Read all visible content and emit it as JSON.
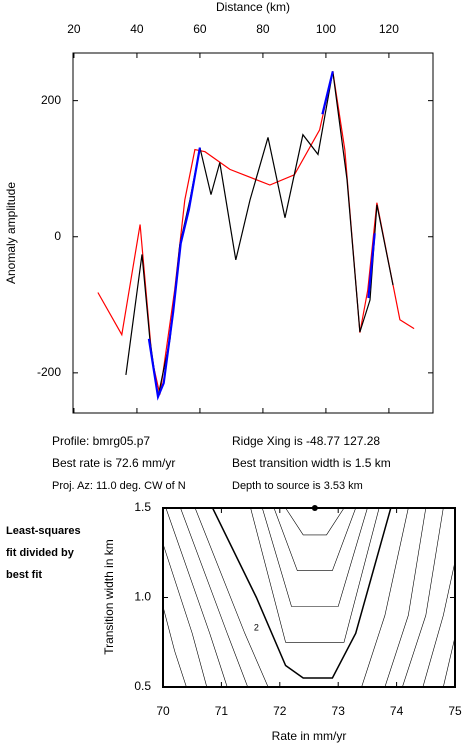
{
  "chart_data": [
    {
      "type": "line",
      "xlabel": "Distance (km)",
      "ylabel": "Anomaly amplitude",
      "xlim": [
        19.7,
        134
      ],
      "ylim": [
        -259,
        270
      ],
      "xticks": [
        20,
        40,
        60,
        80,
        100,
        120
      ],
      "yticks": [
        -200,
        0,
        200
      ],
      "series": [
        {
          "color": "#ff0000",
          "x": [
            27.6,
            35.2,
            41,
            44.8,
            47.3,
            52,
            55.2,
            58.4,
            61.6,
            69.5,
            82.2,
            90,
            98,
            102.2,
            106,
            110.8,
            113.3,
            116.2,
            119.4,
            123.5,
            128
          ],
          "values": [
            -82,
            -144,
            18,
            -181,
            -232,
            -78,
            54,
            128,
            125,
            99,
            76,
            91,
            157,
            243,
            128,
            -141,
            -78,
            50,
            -26,
            -122,
            -135
          ]
        },
        {
          "color": "#000000",
          "x": [
            36.5,
            41.6,
            44.1,
            46.7,
            50.5,
            53.6,
            56.8,
            60,
            63.5,
            66.3,
            71.4,
            75.9,
            81.6,
            87,
            92.7,
            97.5,
            102.2,
            106.7,
            110.8,
            114,
            116.2,
            121.3
          ],
          "values": [
            -203,
            -26,
            -151,
            -235,
            -151,
            -12,
            54,
            131,
            62,
            109,
            -34,
            54,
            146,
            28,
            150,
            121,
            243,
            84,
            -140,
            -93,
            47,
            -71
          ]
        },
        {
          "color": "#0000ff",
          "x": [
            43.8,
            46.7,
            48.5,
            51.5,
            53.9,
            56.5,
            60,
            null,
            98.9,
            102.2,
            null,
            113.5,
            115.5
          ],
          "values": [
            -150,
            -235,
            -215,
            -110,
            -10,
            40,
            131,
            null,
            180,
            243,
            null,
            -90,
            5
          ]
        }
      ]
    },
    {
      "type": "contour",
      "xlabel": "Rate in mm/yr",
      "ylabel": "Transition width in km",
      "xlim": [
        70,
        75
      ],
      "ylim": [
        0.5,
        1.5
      ],
      "xticks": [
        70,
        71,
        72,
        73,
        74,
        75
      ],
      "yticks": [
        {
          "value": 0.5,
          "label": "0.5"
        },
        {
          "value": 1.0,
          "label": "1.0"
        },
        {
          "value": 1.5,
          "label": "1.5"
        }
      ],
      "best_fit": {
        "x": 72.6,
        "y": 1.5
      },
      "contour_label": {
        "text": "2",
        "x": 71.6,
        "y": 0.83
      },
      "contours": [
        {
          "x": [
            72.1,
            72.4,
            72.8,
            73.1
          ],
          "y": [
            1.5,
            1.35,
            1.35,
            1.5
          ],
          "width": 0.6
        },
        {
          "x": [
            71.9,
            72.3,
            72.9,
            73.3
          ],
          "y": [
            1.5,
            1.15,
            1.15,
            1.5
          ],
          "width": 0.6
        },
        {
          "x": [
            71.7,
            72.2,
            73.0,
            73.5
          ],
          "y": [
            1.5,
            0.95,
            0.95,
            1.5
          ],
          "width": 0.6
        },
        {
          "x": [
            71.5,
            72.1,
            73.1,
            73.7
          ],
          "y": [
            1.5,
            0.75,
            0.75,
            1.5
          ],
          "width": 0.6
        },
        {
          "x": [
            70.85,
            71.6,
            72.1,
            72.4,
            72.9,
            73.3,
            73.9
          ],
          "y": [
            1.5,
            1.0,
            0.62,
            0.55,
            0.55,
            0.8,
            1.5
          ],
          "width": 1.5
        },
        {
          "x": [
            70.55,
            71.4,
            71.8
          ],
          "y": [
            1.5,
            0.8,
            0.5
          ],
          "width": 0.6
        },
        {
          "x": [
            73.4,
            73.8,
            74.2
          ],
          "y": [
            0.5,
            0.9,
            1.5
          ],
          "width": 0.6
        },
        {
          "x": [
            70.3,
            71.1,
            71.45
          ],
          "y": [
            1.5,
            0.8,
            0.5
          ],
          "width": 0.6
        },
        {
          "x": [
            73.8,
            74.2,
            74.5
          ],
          "y": [
            0.5,
            0.9,
            1.5
          ],
          "width": 0.6
        },
        {
          "x": [
            70.05,
            70.8,
            71.1
          ],
          "y": [
            1.5,
            0.8,
            0.5
          ],
          "width": 0.6
        },
        {
          "x": [
            74.1,
            74.5,
            74.8
          ],
          "y": [
            0.5,
            0.9,
            1.5
          ],
          "width": 0.6
        },
        {
          "x": [
            70,
            70.5,
            70.75
          ],
          "y": [
            1.3,
            0.8,
            0.5
          ],
          "width": 0.6
        },
        {
          "x": [
            74.45,
            74.8,
            75
          ],
          "y": [
            0.5,
            0.9,
            1.2
          ],
          "width": 0.6
        },
        {
          "x": [
            70,
            70.2,
            70.4
          ],
          "y": [
            0.95,
            0.7,
            0.5
          ],
          "width": 0.6
        },
        {
          "x": [
            74.8,
            75
          ],
          "y": [
            0.5,
            0.78
          ],
          "width": 0.6
        }
      ]
    }
  ],
  "info": [
    "Profile: bmrg05.p7",
    "Ridge Xing is -48.77 127.28",
    "Best rate is 72.6 mm/yr",
    "Best transition width is 1.5 km",
    "Proj. Az: 11.0 deg. CW of N",
    "Depth to source is   3.53 km"
  ],
  "side_note": [
    "Least-squares",
    "fit divided by",
    "best fit"
  ]
}
